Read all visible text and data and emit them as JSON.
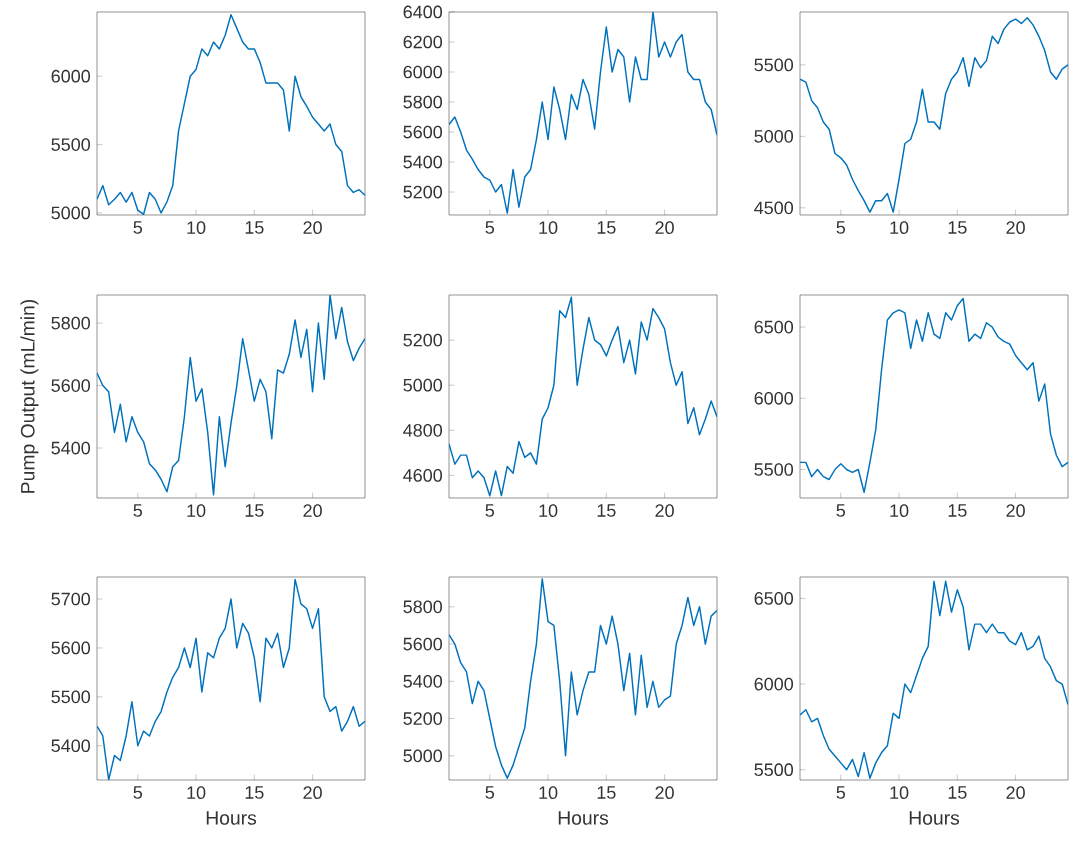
{
  "chart_data": [
    {
      "type": "line",
      "color": "#0072bd",
      "xlim": [
        1.5,
        24.5
      ],
      "xticks": [
        5,
        10,
        15,
        20
      ],
      "ylim": [
        4985,
        6470
      ],
      "yticks": [
        5000,
        5500,
        6000
      ],
      "x": [
        1.5,
        2,
        2.5,
        3,
        3.5,
        4,
        4.5,
        5,
        5.5,
        6,
        6.5,
        7,
        7.5,
        8,
        8.5,
        9,
        9.5,
        10,
        10.5,
        11,
        11.5,
        12,
        12.5,
        13,
        13.5,
        14,
        14.5,
        15,
        15.5,
        16,
        16.5,
        17,
        17.5,
        18,
        18.5,
        19,
        19.5,
        20,
        20.5,
        21,
        21.5,
        22,
        22.5,
        23,
        23.5,
        24,
        24.5
      ],
      "values": [
        5100,
        5200,
        5060,
        5100,
        5150,
        5080,
        5150,
        5020,
        4990,
        5150,
        5100,
        5000,
        5080,
        5200,
        5600,
        5800,
        6000,
        6050,
        6200,
        6150,
        6250,
        6200,
        6300,
        6450,
        6350,
        6250,
        6200,
        6200,
        6100,
        5950,
        5950,
        5950,
        5900,
        5600,
        6000,
        5850,
        5780,
        5700,
        5650,
        5600,
        5650,
        5500,
        5450,
        5200,
        5150,
        5170,
        5130
      ]
    },
    {
      "type": "line",
      "color": "#0072bd",
      "xlim": [
        1.5,
        24.5
      ],
      "xticks": [
        5,
        10,
        15,
        20
      ],
      "ylim": [
        5047,
        6400
      ],
      "yticks": [
        5200,
        5400,
        5600,
        5800,
        6000,
        6200,
        6400
      ],
      "x": [
        1.5,
        2,
        2.5,
        3,
        3.5,
        4,
        4.5,
        5,
        5.5,
        6,
        6.5,
        7,
        7.5,
        8,
        8.5,
        9,
        9.5,
        10,
        10.5,
        11,
        11.5,
        12,
        12.5,
        13,
        13.5,
        14,
        14.5,
        15,
        15.5,
        16,
        16.5,
        17,
        17.5,
        18,
        18.5,
        19,
        19.5,
        20,
        20.5,
        21,
        21.5,
        22,
        22.5,
        23,
        23.5,
        24,
        24.5
      ],
      "values": [
        5650,
        5700,
        5600,
        5480,
        5420,
        5350,
        5300,
        5280,
        5200,
        5250,
        5060,
        5350,
        5100,
        5300,
        5350,
        5550,
        5800,
        5550,
        5900,
        5750,
        5550,
        5850,
        5750,
        5950,
        5850,
        5620,
        6000,
        6300,
        6000,
        6150,
        6100,
        5800,
        6100,
        5950,
        5950,
        6400,
        6100,
        6200,
        6100,
        6200,
        6250,
        6000,
        5950,
        5950,
        5800,
        5750,
        5580
      ]
    },
    {
      "type": "line",
      "color": "#0072bd",
      "xlim": [
        1.5,
        24.5
      ],
      "xticks": [
        5,
        10,
        15,
        20
      ],
      "ylim": [
        4450,
        5870
      ],
      "yticks": [
        4500,
        5000,
        5500
      ],
      "x": [
        1.5,
        2,
        2.5,
        3,
        3.5,
        4,
        4.5,
        5,
        5.5,
        6,
        6.5,
        7,
        7.5,
        8,
        8.5,
        9,
        9.5,
        10,
        10.5,
        11,
        11.5,
        12,
        12.5,
        13,
        13.5,
        14,
        14.5,
        15,
        15.5,
        16,
        16.5,
        17,
        17.5,
        18,
        18.5,
        19,
        19.5,
        20,
        20.5,
        21,
        21.5,
        22,
        22.5,
        23,
        23.5,
        24,
        24.5
      ],
      "values": [
        5400,
        5380,
        5250,
        5200,
        5100,
        5050,
        4880,
        4850,
        4800,
        4700,
        4620,
        4550,
        4470,
        4550,
        4550,
        4600,
        4470,
        4700,
        4950,
        4980,
        5100,
        5330,
        5100,
        5100,
        5050,
        5300,
        5400,
        5450,
        5550,
        5350,
        5550,
        5480,
        5530,
        5700,
        5650,
        5750,
        5800,
        5820,
        5790,
        5830,
        5780,
        5700,
        5600,
        5450,
        5400,
        5470,
        5500
      ]
    },
    {
      "type": "line",
      "color": "#0072bd",
      "ylabel": "Pump Output (mL/min)",
      "xlim": [
        1.5,
        24.5
      ],
      "xticks": [
        5,
        10,
        15,
        20
      ],
      "ylim": [
        5240,
        5890
      ],
      "yticks": [
        5400,
        5600,
        5800
      ],
      "x": [
        1.5,
        2,
        2.5,
        3,
        3.5,
        4,
        4.5,
        5,
        5.5,
        6,
        6.5,
        7,
        7.5,
        8,
        8.5,
        9,
        9.5,
        10,
        10.5,
        11,
        11.5,
        12,
        12.5,
        13,
        13.5,
        14,
        14.5,
        15,
        15.5,
        16,
        16.5,
        17,
        17.5,
        18,
        18.5,
        19,
        19.5,
        20,
        20.5,
        21,
        21.5,
        22,
        22.5,
        23,
        23.5,
        24,
        24.5
      ],
      "values": [
        5640,
        5600,
        5580,
        5450,
        5540,
        5420,
        5500,
        5450,
        5420,
        5350,
        5330,
        5300,
        5260,
        5340,
        5360,
        5500,
        5690,
        5550,
        5590,
        5450,
        5250,
        5500,
        5340,
        5480,
        5600,
        5750,
        5650,
        5550,
        5620,
        5580,
        5430,
        5650,
        5640,
        5700,
        5810,
        5690,
        5780,
        5580,
        5800,
        5620,
        5890,
        5750,
        5850,
        5740,
        5680,
        5720,
        5750
      ]
    },
    {
      "type": "line",
      "color": "#0072bd",
      "xlim": [
        1.5,
        24.5
      ],
      "xticks": [
        5,
        10,
        15,
        20
      ],
      "ylim": [
        4500,
        5400
      ],
      "yticks": [
        4600,
        4800,
        5000,
        5200
      ],
      "x": [
        1.5,
        2,
        2.5,
        3,
        3.5,
        4,
        4.5,
        5,
        5.5,
        6,
        6.5,
        7,
        7.5,
        8,
        8.5,
        9,
        9.5,
        10,
        10.5,
        11,
        11.5,
        12,
        12.5,
        13,
        13.5,
        14,
        14.5,
        15,
        15.5,
        16,
        16.5,
        17,
        17.5,
        18,
        18.5,
        19,
        19.5,
        20,
        20.5,
        21,
        21.5,
        22,
        22.5,
        23,
        23.5,
        24,
        24.5
      ],
      "values": [
        4740,
        4650,
        4690,
        4690,
        4590,
        4620,
        4590,
        4510,
        4620,
        4510,
        4640,
        4610,
        4750,
        4680,
        4700,
        4650,
        4850,
        4900,
        5000,
        5330,
        5300,
        5390,
        5000,
        5160,
        5300,
        5200,
        5180,
        5130,
        5200,
        5260,
        5100,
        5200,
        5050,
        5280,
        5200,
        5340,
        5300,
        5250,
        5100,
        5000,
        5060,
        4830,
        4900,
        4780,
        4850,
        4930,
        4860
      ]
    },
    {
      "type": "line",
      "color": "#0072bd",
      "xlim": [
        1.5,
        24.5
      ],
      "xticks": [
        5,
        10,
        15,
        20
      ],
      "ylim": [
        5300,
        6725
      ],
      "yticks": [
        5500,
        6000,
        6500
      ],
      "x": [
        1.5,
        2,
        2.5,
        3,
        3.5,
        4,
        4.5,
        5,
        5.5,
        6,
        6.5,
        7,
        7.5,
        8,
        8.5,
        9,
        9.5,
        10,
        10.5,
        11,
        11.5,
        12,
        12.5,
        13,
        13.5,
        14,
        14.5,
        15,
        15.5,
        16,
        16.5,
        17,
        17.5,
        18,
        18.5,
        19,
        19.5,
        20,
        20.5,
        21,
        21.5,
        22,
        22.5,
        23,
        23.5,
        24,
        24.5
      ],
      "values": [
        5550,
        5550,
        5450,
        5500,
        5450,
        5430,
        5500,
        5540,
        5500,
        5480,
        5500,
        5340,
        5550,
        5780,
        6200,
        6550,
        6600,
        6620,
        6600,
        6350,
        6550,
        6400,
        6600,
        6450,
        6420,
        6600,
        6550,
        6650,
        6700,
        6400,
        6450,
        6420,
        6530,
        6500,
        6430,
        6400,
        6380,
        6300,
        6250,
        6200,
        6250,
        5980,
        6100,
        5750,
        5600,
        5520,
        5550
      ]
    },
    {
      "type": "line",
      "color": "#0072bd",
      "xlabel": "Hours",
      "xlim": [
        1.5,
        24.5
      ],
      "xticks": [
        5,
        10,
        15,
        20
      ],
      "ylim": [
        5330,
        5745
      ],
      "yticks": [
        5400,
        5500,
        5600,
        5700
      ],
      "x": [
        1.5,
        2,
        2.5,
        3,
        3.5,
        4,
        4.5,
        5,
        5.5,
        6,
        6.5,
        7,
        7.5,
        8,
        8.5,
        9,
        9.5,
        10,
        10.5,
        11,
        11.5,
        12,
        12.5,
        13,
        13.5,
        14,
        14.5,
        15,
        15.5,
        16,
        16.5,
        17,
        17.5,
        18,
        18.5,
        19,
        19.5,
        20,
        20.5,
        21,
        21.5,
        22,
        22.5,
        23,
        23.5,
        24,
        24.5
      ],
      "values": [
        5440,
        5420,
        5330,
        5380,
        5370,
        5420,
        5490,
        5400,
        5430,
        5420,
        5450,
        5470,
        5510,
        5540,
        5560,
        5600,
        5560,
        5620,
        5510,
        5590,
        5580,
        5620,
        5640,
        5700,
        5600,
        5650,
        5630,
        5580,
        5490,
        5620,
        5600,
        5630,
        5560,
        5600,
        5740,
        5690,
        5680,
        5640,
        5680,
        5500,
        5470,
        5480,
        5430,
        5450,
        5480,
        5440,
        5450
      ]
    },
    {
      "type": "line",
      "color": "#0072bd",
      "xlabel": "Hours",
      "xlim": [
        1.5,
        24.5
      ],
      "xticks": [
        5,
        10,
        15,
        20
      ],
      "ylim": [
        4870,
        5960
      ],
      "yticks": [
        5000,
        5200,
        5400,
        5600,
        5800
      ],
      "x": [
        1.5,
        2,
        2.5,
        3,
        3.5,
        4,
        4.5,
        5,
        5.5,
        6,
        6.5,
        7,
        7.5,
        8,
        8.5,
        9,
        9.5,
        10,
        10.5,
        11,
        11.5,
        12,
        12.5,
        13,
        13.5,
        14,
        14.5,
        15,
        15.5,
        16,
        16.5,
        17,
        17.5,
        18,
        18.5,
        19,
        19.5,
        20,
        20.5,
        21,
        21.5,
        22,
        22.5,
        23,
        23.5,
        24,
        24.5
      ],
      "values": [
        5650,
        5600,
        5500,
        5450,
        5280,
        5400,
        5350,
        5200,
        5050,
        4950,
        4880,
        4950,
        5050,
        5150,
        5400,
        5600,
        5950,
        5720,
        5700,
        5400,
        5000,
        5450,
        5220,
        5350,
        5450,
        5450,
        5700,
        5600,
        5750,
        5600,
        5350,
        5550,
        5220,
        5540,
        5260,
        5400,
        5260,
        5300,
        5320,
        5600,
        5700,
        5850,
        5700,
        5800,
        5600,
        5750,
        5780
      ]
    },
    {
      "type": "line",
      "color": "#0072bd",
      "xlabel": "Hours",
      "xlim": [
        1.5,
        24.5
      ],
      "xticks": [
        5,
        10,
        15,
        20
      ],
      "ylim": [
        5440,
        6625
      ],
      "yticks": [
        5500,
        6000,
        6500
      ],
      "x": [
        1.5,
        2,
        2.5,
        3,
        3.5,
        4,
        4.5,
        5,
        5.5,
        6,
        6.5,
        7,
        7.5,
        8,
        8.5,
        9,
        9.5,
        10,
        10.5,
        11,
        11.5,
        12,
        12.5,
        13,
        13.5,
        14,
        14.5,
        15,
        15.5,
        16,
        16.5,
        17,
        17.5,
        18,
        18.5,
        19,
        19.5,
        20,
        20.5,
        21,
        21.5,
        22,
        22.5,
        23,
        23.5,
        24,
        24.5
      ],
      "values": [
        5820,
        5850,
        5780,
        5800,
        5700,
        5620,
        5580,
        5540,
        5500,
        5560,
        5460,
        5600,
        5450,
        5540,
        5600,
        5640,
        5830,
        5800,
        6000,
        5950,
        6050,
        6150,
        6220,
        6600,
        6400,
        6600,
        6420,
        6550,
        6450,
        6200,
        6350,
        6350,
        6300,
        6350,
        6300,
        6300,
        6250,
        6230,
        6300,
        6200,
        6220,
        6280,
        6150,
        6100,
        6020,
        6000,
        5880
      ]
    }
  ]
}
